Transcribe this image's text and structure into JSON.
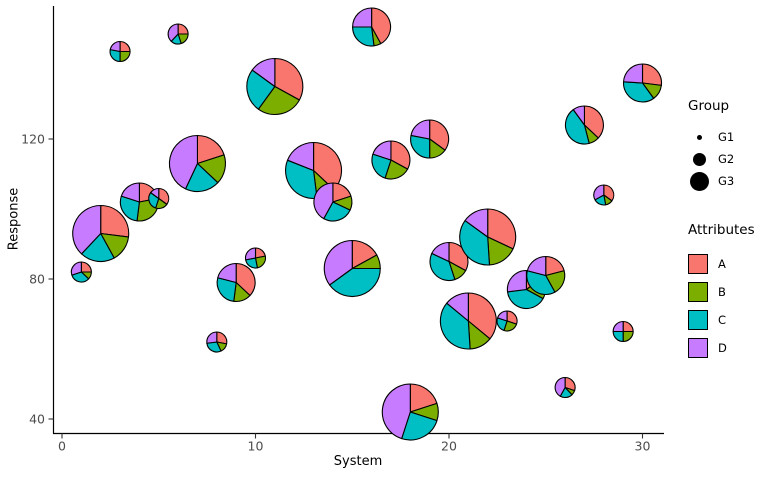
{
  "chart_data": {
    "type": "scatterpie",
    "title": "",
    "xlabel": "System",
    "ylabel": "Response",
    "x_ticks": [
      0,
      10,
      20,
      30
    ],
    "y_ticks": [
      40,
      80,
      120
    ],
    "xlim": [
      0,
      31
    ],
    "ylim": [
      38,
      155
    ],
    "grid": "off",
    "legend_position": "right",
    "attribute_colors": {
      "A": "#F8766D",
      "B": "#7CAE00",
      "C": "#00BFC4",
      "D": "#C77CFF"
    },
    "axis_text_color": "#4d4d4d",
    "group_radius_px": {
      "G1": 10,
      "G2": 19,
      "G3": 28
    },
    "legend": {
      "group": {
        "title": "Group",
        "items": [
          {
            "label": "G1",
            "dot_radius_px": 2.5
          },
          {
            "label": "G2",
            "dot_radius_px": 6.5
          },
          {
            "label": "G3",
            "dot_radius_px": 9.5
          }
        ]
      },
      "attributes": {
        "title": "Attributes",
        "items": [
          {
            "label": "A",
            "color": "#F8766D"
          },
          {
            "label": "B",
            "color": "#7CAE00"
          },
          {
            "label": "C",
            "color": "#00BFC4"
          },
          {
            "label": "D",
            "color": "#C77CFF"
          }
        ]
      }
    },
    "pies": [
      {
        "system": 1,
        "response": 82,
        "group": "G1",
        "fractions": {
          "A": 0.25,
          "B": 0.12,
          "C": 0.33,
          "D": 0.3
        }
      },
      {
        "system": 2,
        "response": 93,
        "group": "G3",
        "fractions": {
          "A": 0.27,
          "B": 0.15,
          "C": 0.2,
          "D": 0.38
        }
      },
      {
        "system": 3,
        "response": 145,
        "group": "G1",
        "fractions": {
          "A": 0.25,
          "B": 0.25,
          "C": 0.28,
          "D": 0.22
        }
      },
      {
        "system": 4,
        "response": 102,
        "group": "G2",
        "fractions": {
          "A": 0.22,
          "B": 0.3,
          "C": 0.28,
          "D": 0.2
        }
      },
      {
        "system": 5,
        "response": 103,
        "group": "G1",
        "fractions": {
          "A": 0.35,
          "B": 0.2,
          "C": 0.3,
          "D": 0.15
        }
      },
      {
        "system": 6,
        "response": 150,
        "group": "G1",
        "fractions": {
          "A": 0.25,
          "B": 0.2,
          "C": 0.17,
          "D": 0.38
        }
      },
      {
        "system": 7,
        "response": 113,
        "group": "G3",
        "fractions": {
          "A": 0.2,
          "B": 0.17,
          "C": 0.2,
          "D": 0.43
        }
      },
      {
        "system": 8,
        "response": 62,
        "group": "G1",
        "fractions": {
          "A": 0.28,
          "B": 0.15,
          "C": 0.3,
          "D": 0.27
        }
      },
      {
        "system": 9,
        "response": 79,
        "group": "G2",
        "fractions": {
          "A": 0.37,
          "B": 0.15,
          "C": 0.27,
          "D": 0.21
        }
      },
      {
        "system": 10,
        "response": 86,
        "group": "G1",
        "fractions": {
          "A": 0.22,
          "B": 0.25,
          "C": 0.25,
          "D": 0.28
        }
      },
      {
        "system": 11,
        "response": 135,
        "group": "G3",
        "fractions": {
          "A": 0.33,
          "B": 0.27,
          "C": 0.25,
          "D": 0.15
        }
      },
      {
        "system": 13,
        "response": 111,
        "group": "G3",
        "fractions": {
          "A": 0.37,
          "B": 0.11,
          "C": 0.33,
          "D": 0.19
        }
      },
      {
        "system": 14,
        "response": 102,
        "group": "G2",
        "fractions": {
          "A": 0.2,
          "B": 0.12,
          "C": 0.26,
          "D": 0.42
        }
      },
      {
        "system": 15,
        "response": 83,
        "group": "G3",
        "fractions": {
          "A": 0.17,
          "B": 0.08,
          "C": 0.4,
          "D": 0.35
        }
      },
      {
        "system": 16,
        "response": 152,
        "group": "G2",
        "fractions": {
          "A": 0.42,
          "B": 0.06,
          "C": 0.27,
          "D": 0.25
        }
      },
      {
        "system": 17,
        "response": 114,
        "group": "G2",
        "fractions": {
          "A": 0.33,
          "B": 0.22,
          "C": 0.25,
          "D": 0.2
        }
      },
      {
        "system": 18,
        "response": 42,
        "group": "G3",
        "fractions": {
          "A": 0.2,
          "B": 0.1,
          "C": 0.25,
          "D": 0.45
        }
      },
      {
        "system": 19,
        "response": 120,
        "group": "G2",
        "fractions": {
          "A": 0.35,
          "B": 0.15,
          "C": 0.28,
          "D": 0.22
        }
      },
      {
        "system": 20,
        "response": 85,
        "group": "G2",
        "fractions": {
          "A": 0.33,
          "B": 0.12,
          "C": 0.37,
          "D": 0.18
        }
      },
      {
        "system": 21,
        "response": 68,
        "group": "G3",
        "fractions": {
          "A": 0.36,
          "B": 0.13,
          "C": 0.37,
          "D": 0.14
        }
      },
      {
        "system": 22,
        "response": 92,
        "group": "G3",
        "fractions": {
          "A": 0.32,
          "B": 0.17,
          "C": 0.36,
          "D": 0.15
        }
      },
      {
        "system": 23,
        "response": 68,
        "group": "G1",
        "fractions": {
          "A": 0.3,
          "B": 0.25,
          "C": 0.25,
          "D": 0.2
        }
      },
      {
        "system": 24,
        "response": 77,
        "group": "G2",
        "fractions": {
          "A": 0.15,
          "B": 0.18,
          "C": 0.4,
          "D": 0.27
        }
      },
      {
        "system": 25,
        "response": 81,
        "group": "G2",
        "fractions": {
          "A": 0.21,
          "B": 0.21,
          "C": 0.37,
          "D": 0.21
        }
      },
      {
        "system": 26,
        "response": 49,
        "group": "G1",
        "fractions": {
          "A": 0.3,
          "B": 0.08,
          "C": 0.2,
          "D": 0.42
        }
      },
      {
        "system": 27,
        "response": 124,
        "group": "G2",
        "fractions": {
          "A": 0.37,
          "B": 0.09,
          "C": 0.44,
          "D": 0.1
        }
      },
      {
        "system": 28,
        "response": 104,
        "group": "G1",
        "fractions": {
          "A": 0.35,
          "B": 0.12,
          "C": 0.2,
          "D": 0.33
        }
      },
      {
        "system": 29,
        "response": 65,
        "group": "G1",
        "fractions": {
          "A": 0.25,
          "B": 0.25,
          "C": 0.25,
          "D": 0.25
        }
      },
      {
        "system": 30,
        "response": 136,
        "group": "G2",
        "fractions": {
          "A": 0.27,
          "B": 0.13,
          "C": 0.36,
          "D": 0.24
        }
      }
    ]
  }
}
